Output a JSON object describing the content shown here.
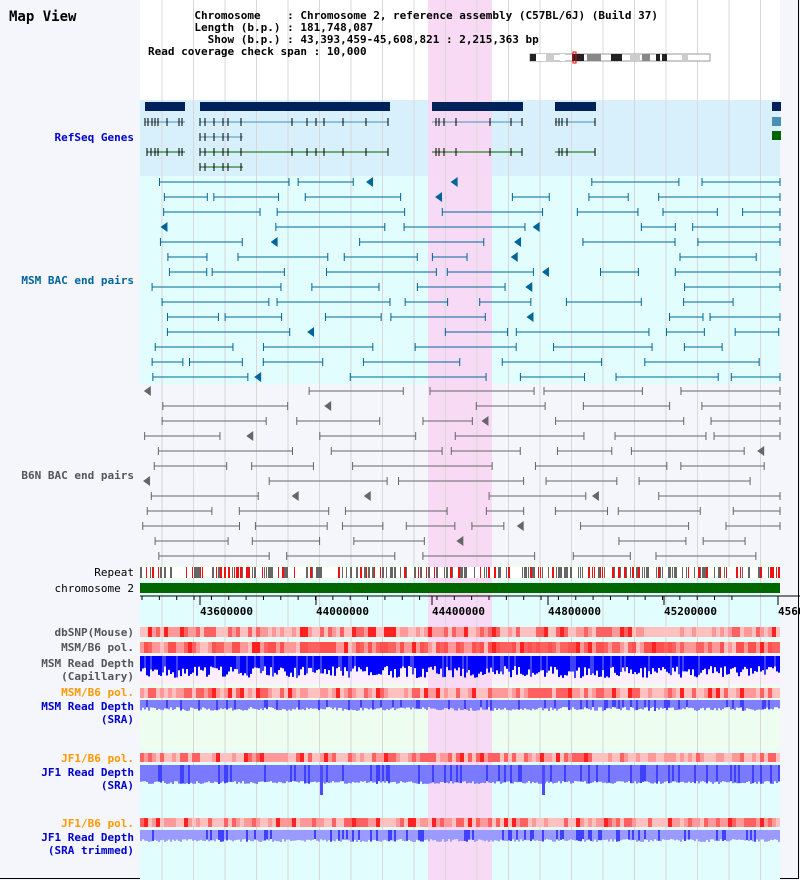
{
  "title": "Map View",
  "info": {
    "chromosome_label": "Chromosome",
    "chromosome_value": "Chromosome 2, reference assembly (C57BL/6J) (Build 37)",
    "length_label": "Length (b.p.)",
    "length_value": "181,748,087",
    "show_label": "Show (b.p.)",
    "show_value": "43,393,459-45,608,821 : 2,215,363 bp",
    "coverage_label": "Read coverage check span",
    "coverage_value": "10,000"
  },
  "tracks": {
    "refseq": {
      "label": "RefSeq Genes",
      "color": "#0000cc"
    },
    "msm_bac": {
      "label": "MSM BAC end pairs",
      "color": "#006699"
    },
    "b6n_bac": {
      "label": "B6N BAC end pairs",
      "color": "#555555"
    },
    "repeat": {
      "label": "Repeat",
      "color": "#000000"
    },
    "chromosome": {
      "label": "chromosome 2",
      "color": "#000000"
    },
    "dbsnp": {
      "label": "dbSNP(Mouse)",
      "color": "#555555"
    },
    "msm_b6_pol1": {
      "label": "MSM/B6 pol.",
      "color": "#555555"
    },
    "msm_depth_cap": {
      "label": "MSM Read Depth",
      "label2": "(Capillary)",
      "color": "#555555"
    },
    "msm_b6_pol2": {
      "label": "MSM/B6 pol.",
      "color": "#ff9900"
    },
    "msm_depth_sra": {
      "label": "MSM Read Depth",
      "label2": "(SRA)",
      "color": "#0000cc"
    },
    "jf1_b6_pol1": {
      "label": "JF1/B6 pol.",
      "color": "#ff9900"
    },
    "jf1_depth_sra": {
      "label": "JF1 Read Depth",
      "label2": "(SRA)",
      "color": "#0000cc"
    },
    "jf1_b6_pol2": {
      "label": "JF1/B6 pol.",
      "color": "#ff9900"
    },
    "jf1_depth_trim": {
      "label": "JF1 Read Depth",
      "label2": "(SRA trimmed)",
      "color": "#0000cc"
    }
  },
  "axis": {
    "start": 43393459,
    "end": 45608821,
    "ticks": [
      "43600000",
      "44000000",
      "44400000",
      "44800000",
      "45200000",
      "4560"
    ]
  },
  "highlight": {
    "start": 44370000,
    "end": 44590000,
    "color": "#f8d8f4"
  },
  "colors": {
    "refseq_bar": "#00215a",
    "refseq_tx1": "#4a8fb4",
    "refseq_tx2": "#006600",
    "msm_bac": "#006699",
    "b6n_bac": "#666666",
    "chromosome_bar": "#006600",
    "depth_capillary": "#0000ff",
    "depth_sra": "#8080ff"
  }
}
